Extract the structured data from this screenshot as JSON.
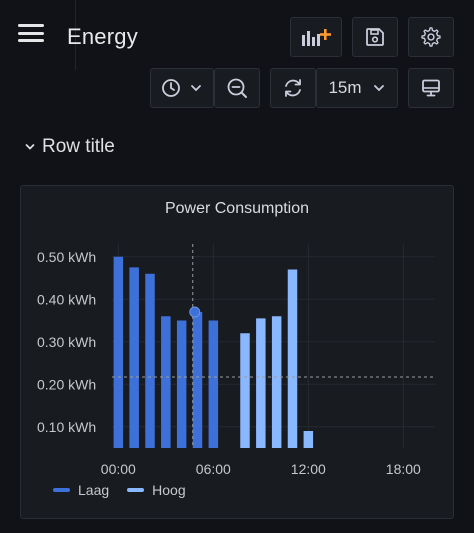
{
  "header": {
    "title": "Energy",
    "timerange": "15m"
  },
  "row": {
    "title": "Row title"
  },
  "panel": {
    "title": "Power Consumption"
  },
  "icons": {
    "menu": "hamburger-icon",
    "add_panel": "add-panel-icon",
    "save": "save-icon",
    "settings": "gear-icon",
    "time_picker": "clock-icon",
    "zoom_out": "zoom-out-icon",
    "refresh": "refresh-icon",
    "tv_mode": "monitor-icon"
  },
  "colors": {
    "background": "#111217",
    "panel": "#181b1f",
    "laag": "#3d71d9",
    "hoog": "#8ab8ff",
    "accent": "#ff9830"
  },
  "chart_data": {
    "type": "bar",
    "title": "Power Consumption",
    "unit": "kWh",
    "ylim": [
      0.05,
      0.53
    ],
    "y_ticks": [
      "0.10 kWh",
      "0.20 kWh",
      "0.30 kWh",
      "0.40 kWh",
      "0.50 kWh"
    ],
    "y_tick_values": [
      0.1,
      0.2,
      0.3,
      0.4,
      0.5
    ],
    "xlim": [
      -0.4,
      20
    ],
    "x_ticks": [
      "00:00",
      "06:00",
      "12:00",
      "18:00"
    ],
    "x_tick_values": [
      0,
      6,
      12,
      18
    ],
    "grid": true,
    "legend_position": "bottom-left",
    "threshold": 0.217,
    "crosshair_x": 4.7,
    "series": [
      {
        "name": "Laag",
        "color": "#3d71d9",
        "x": [
          0,
          1,
          2,
          3,
          4,
          5,
          6
        ],
        "values": [
          0.5,
          0.475,
          0.46,
          0.36,
          0.35,
          0.37,
          0.35
        ]
      },
      {
        "name": "Hoog",
        "color": "#8ab8ff",
        "x": [
          8,
          9,
          10,
          11,
          12
        ],
        "values": [
          0.32,
          0.355,
          0.36,
          0.47,
          0.09
        ]
      }
    ]
  }
}
